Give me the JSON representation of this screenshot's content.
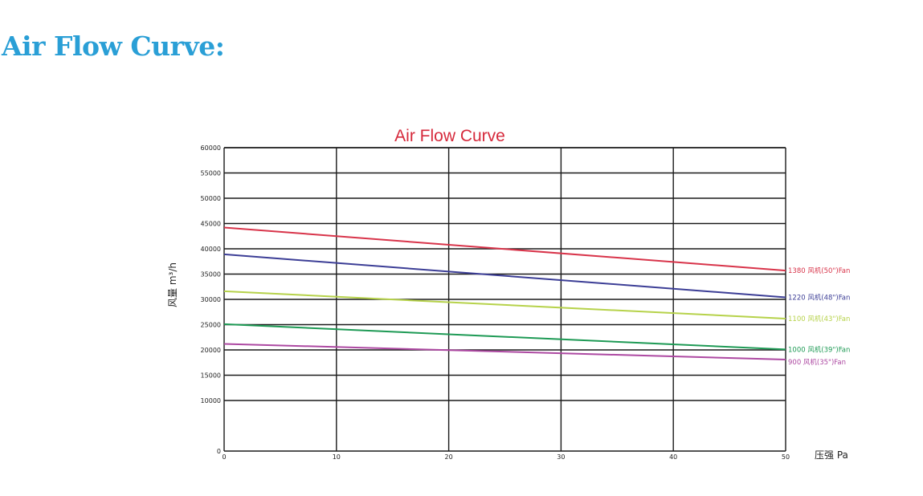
{
  "page": {
    "heading": "Air Flow Curve:"
  },
  "chart_data": {
    "type": "line",
    "title": "Air Flow Curve",
    "xlabel": "压强  Pa",
    "ylabel": "风量 m³/h",
    "xlim": [
      0,
      50
    ],
    "ylim": [
      0,
      60000
    ],
    "x_ticks": [
      0,
      10,
      20,
      30,
      40,
      50
    ],
    "y_ticks": [
      0,
      10000,
      15000,
      20000,
      25000,
      30000,
      35000,
      40000,
      45000,
      50000,
      55000,
      60000
    ],
    "grid": true,
    "legend": "right-end labels",
    "series": [
      {
        "name": "1380 风机(50\")Fan",
        "color": "#d8344a",
        "x": [
          0,
          50
        ],
        "y": [
          44200,
          35700
        ]
      },
      {
        "name": "1220 风机(48\")Fan",
        "color": "#3c3e96",
        "x": [
          0,
          50
        ],
        "y": [
          38900,
          30400
        ]
      },
      {
        "name": "1100 风机(43\")Fan",
        "color": "#b6d24a",
        "x": [
          0,
          50
        ],
        "y": [
          31600,
          26200
        ]
      },
      {
        "name": "1000 风机(39\")Fan",
        "color": "#1e9a55",
        "x": [
          0,
          50
        ],
        "y": [
          25100,
          20100
        ]
      },
      {
        "name": "900 风机(35\")Fan",
        "color": "#ad49a2",
        "x": [
          0,
          50
        ],
        "y": [
          21200,
          18100
        ]
      }
    ]
  }
}
